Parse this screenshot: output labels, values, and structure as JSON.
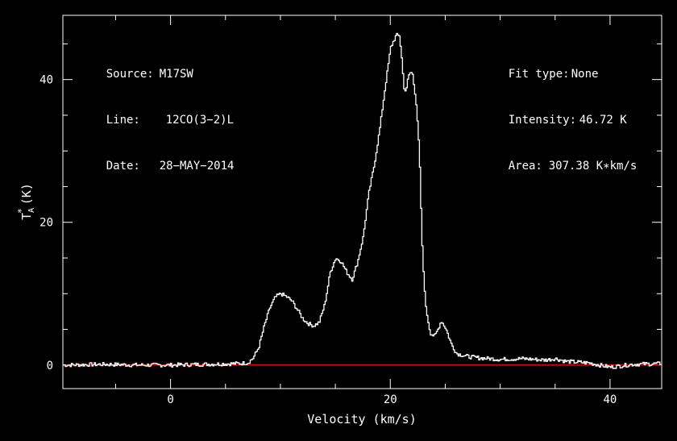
{
  "chart_data": {
    "type": "line",
    "xlabel": "Velocity (km/s)",
    "ylabel_main": "T",
    "ylabel_sup": "*",
    "ylabel_sub": "A",
    "ylabel_unit": "(K)",
    "xlim": [
      -9.8,
      44.7
    ],
    "ylim": [
      -3.3,
      49
    ],
    "xticks_major": [
      0,
      20,
      40
    ],
    "xticks_minor_step": 5,
    "yticks_major": [
      0,
      20,
      40
    ],
    "yticks_minor_step": 5,
    "baseline": 0,
    "colors": {
      "line": "#ffffff",
      "baseline": "#ff0000",
      "background": "#000000",
      "axes": "#ffffff"
    },
    "series": [
      {
        "x": [
          -9.8,
          -6,
          -3,
          0,
          3,
          6,
          7,
          7.5,
          8,
          8.5,
          9,
          9.5,
          10,
          10.5,
          11,
          11.5,
          12,
          12.5,
          13,
          13.5,
          14,
          14.5,
          15,
          15.5,
          16,
          16.5,
          17,
          17.5,
          18,
          18.5,
          19,
          19.5,
          20,
          20.5,
          20.8,
          21,
          21.2,
          21.4,
          21.6,
          21.8,
          22,
          22.3,
          22.6,
          22.9,
          23.2,
          23.6,
          24,
          24.3,
          24.6,
          25,
          25.5,
          26,
          27,
          28,
          30,
          32,
          34,
          35,
          36,
          38,
          40,
          42,
          44.7
        ],
        "y": [
          0,
          0.1,
          0,
          0,
          0.1,
          0.2,
          0.3,
          1.0,
          2.5,
          5.5,
          8,
          9.5,
          10,
          9.6,
          9,
          7.8,
          6.5,
          5.8,
          5.5,
          6,
          8.5,
          13,
          15,
          14.5,
          13,
          12,
          14.5,
          18,
          24,
          28,
          33,
          39,
          44.5,
          46.2,
          46.2,
          43,
          39,
          38.2,
          40.5,
          41,
          40.8,
          37,
          30,
          15,
          8,
          4.5,
          4,
          5,
          6.2,
          5.2,
          3,
          1.6,
          1.2,
          1,
          0.8,
          0.9,
          0.7,
          0.9,
          0.5,
          0.3,
          -0.3,
          0.1,
          0.2
        ]
      }
    ]
  },
  "header_left": [
    {
      "label": "Source:",
      "value": "M17SW"
    },
    {
      "label": "Line:",
      "value": "12CO(3−2)L"
    },
    {
      "label": "Date:",
      "value": "28−MAY−2014"
    }
  ],
  "header_right": [
    {
      "label": "Fit type:",
      "value": "None"
    },
    {
      "label": "Intensity:",
      "value": "46.72 K"
    },
    {
      "label": "Area:",
      "value": "307.38 K∗km/s"
    }
  ]
}
